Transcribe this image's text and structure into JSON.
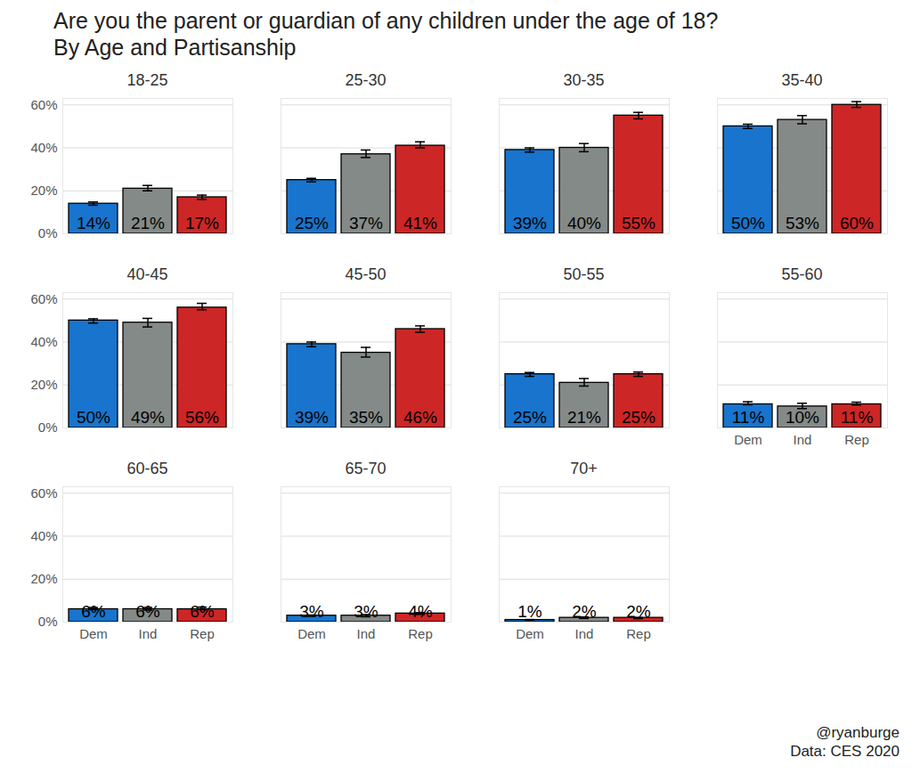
{
  "title": "Are you the parent or guardian of any children under the age of 18?",
  "subtitle": "By Age and Partisanship",
  "caption": "@ryanburge",
  "source": "Data: CES 2020",
  "chart_data": [
    {
      "type": "bar",
      "title": "18-25",
      "categories": [
        "Dem",
        "Ind",
        "Rep"
      ],
      "values": [
        14,
        21,
        17
      ],
      "value_labels": [
        "14%",
        "21%",
        "17%"
      ],
      "error_bars": [
        [
          13.3,
          14.8
        ],
        [
          20,
          22.5
        ],
        [
          16,
          18
        ]
      ],
      "colors": [
        "#1874cd",
        "#848a88",
        "#cd2626"
      ],
      "ylim": [
        0,
        63
      ],
      "yticks": [
        {
          "value": 0,
          "label": "0%"
        },
        {
          "value": 20,
          "label": "20%"
        },
        {
          "value": 40,
          "label": "40%"
        },
        {
          "value": 60,
          "label": "60%"
        }
      ],
      "grid": true,
      "data_labels": true,
      "tick_labels": "y"
    },
    {
      "type": "bar",
      "title": "25-30",
      "categories": [
        "Dem",
        "Ind",
        "Rep"
      ],
      "values": [
        25,
        37,
        41
      ],
      "value_labels": [
        "25%",
        "37%",
        "41%"
      ],
      "error_bars": [
        [
          24.2,
          25.8
        ],
        [
          35.5,
          39
        ],
        [
          40,
          42.8
        ]
      ],
      "colors": [
        "#1874cd",
        "#848a88",
        "#cd2626"
      ],
      "ylim": [
        0,
        63
      ],
      "yticks": [
        {
          "value": 0,
          "label": "0%"
        },
        {
          "value": 20,
          "label": "20%"
        },
        {
          "value": 40,
          "label": "40%"
        },
        {
          "value": 60,
          "label": "60%"
        }
      ],
      "grid": true,
      "data_labels": true,
      "tick_labels": false
    },
    {
      "type": "bar",
      "title": "30-35",
      "categories": [
        "Dem",
        "Ind",
        "Rep"
      ],
      "values": [
        39,
        40,
        55
      ],
      "value_labels": [
        "39%",
        "40%",
        "55%"
      ],
      "error_bars": [
        [
          38,
          40
        ],
        [
          38.2,
          42
        ],
        [
          53.5,
          56.5
        ]
      ],
      "colors": [
        "#1874cd",
        "#848a88",
        "#cd2626"
      ],
      "ylim": [
        0,
        63
      ],
      "yticks": [
        {
          "value": 0,
          "label": "0%"
        },
        {
          "value": 20,
          "label": "20%"
        },
        {
          "value": 40,
          "label": "40%"
        },
        {
          "value": 60,
          "label": "60%"
        }
      ],
      "grid": true,
      "data_labels": true,
      "tick_labels": false
    },
    {
      "type": "bar",
      "title": "35-40",
      "categories": [
        "Dem",
        "Ind",
        "Rep"
      ],
      "values": [
        50,
        53,
        60
      ],
      "value_labels": [
        "50%",
        "53%",
        "60%"
      ],
      "error_bars": [
        [
          49,
          51
        ],
        [
          51.2,
          55
        ],
        [
          58.8,
          61.5
        ]
      ],
      "colors": [
        "#1874cd",
        "#848a88",
        "#cd2626"
      ],
      "ylim": [
        0,
        63
      ],
      "yticks": [
        {
          "value": 0,
          "label": "0%"
        },
        {
          "value": 20,
          "label": "20%"
        },
        {
          "value": 40,
          "label": "40%"
        },
        {
          "value": 60,
          "label": "60%"
        }
      ],
      "grid": true,
      "data_labels": true,
      "tick_labels": false
    },
    {
      "type": "bar",
      "title": "40-45",
      "categories": [
        "Dem",
        "Ind",
        "Rep"
      ],
      "values": [
        50,
        49,
        56
      ],
      "value_labels": [
        "50%",
        "49%",
        "56%"
      ],
      "error_bars": [
        [
          48.8,
          50.8
        ],
        [
          47,
          51
        ],
        [
          55,
          58
        ]
      ],
      "colors": [
        "#1874cd",
        "#848a88",
        "#cd2626"
      ],
      "ylim": [
        0,
        63
      ],
      "yticks": [
        {
          "value": 0,
          "label": "0%"
        },
        {
          "value": 20,
          "label": "20%"
        },
        {
          "value": 40,
          "label": "40%"
        },
        {
          "value": 60,
          "label": "60%"
        }
      ],
      "grid": true,
      "data_labels": true,
      "tick_labels": "y"
    },
    {
      "type": "bar",
      "title": "45-50",
      "categories": [
        "Dem",
        "Ind",
        "Rep"
      ],
      "values": [
        39,
        35,
        46
      ],
      "value_labels": [
        "39%",
        "35%",
        "46%"
      ],
      "error_bars": [
        [
          37.8,
          40
        ],
        [
          33,
          37.5
        ],
        [
          44.5,
          47.5
        ]
      ],
      "colors": [
        "#1874cd",
        "#848a88",
        "#cd2626"
      ],
      "ylim": [
        0,
        63
      ],
      "yticks": [
        {
          "value": 0,
          "label": "0%"
        },
        {
          "value": 20,
          "label": "20%"
        },
        {
          "value": 40,
          "label": "40%"
        },
        {
          "value": 60,
          "label": "60%"
        }
      ],
      "grid": true,
      "data_labels": true,
      "tick_labels": false
    },
    {
      "type": "bar",
      "title": "50-55",
      "categories": [
        "Dem",
        "Ind",
        "Rep"
      ],
      "values": [
        25,
        21,
        25
      ],
      "value_labels": [
        "25%",
        "21%",
        "25%"
      ],
      "error_bars": [
        [
          24,
          25.8
        ],
        [
          19.5,
          23
        ],
        [
          24,
          26
        ]
      ],
      "colors": [
        "#1874cd",
        "#848a88",
        "#cd2626"
      ],
      "ylim": [
        0,
        63
      ],
      "yticks": [
        {
          "value": 0,
          "label": "0%"
        },
        {
          "value": 20,
          "label": "20%"
        },
        {
          "value": 40,
          "label": "40%"
        },
        {
          "value": 60,
          "label": "60%"
        }
      ],
      "grid": true,
      "data_labels": true,
      "tick_labels": false
    },
    {
      "type": "bar",
      "title": "55-60",
      "categories": [
        "Dem",
        "Ind",
        "Rep"
      ],
      "values": [
        11,
        10,
        11
      ],
      "value_labels": [
        "11%",
        "10%",
        "11%"
      ],
      "error_bars": [
        [
          10.8,
          12.2
        ],
        [
          9,
          11.5
        ],
        [
          10.7,
          12
        ]
      ],
      "colors": [
        "#1874cd",
        "#848a88",
        "#cd2626"
      ],
      "ylim": [
        0,
        63
      ],
      "yticks": [
        {
          "value": 0,
          "label": "0%"
        },
        {
          "value": 20,
          "label": "20%"
        },
        {
          "value": 40,
          "label": "40%"
        },
        {
          "value": 60,
          "label": "60%"
        }
      ],
      "grid": true,
      "data_labels": true,
      "tick_labels": "x"
    },
    {
      "type": "bar",
      "title": "60-65",
      "categories": [
        "Dem",
        "Ind",
        "Rep"
      ],
      "values": [
        6,
        6,
        6
      ],
      "value_labels": [
        "6%",
        "6%",
        "6%"
      ],
      "error_bars": [
        [
          5.8,
          6.8
        ],
        [
          5.6,
          6.8
        ],
        [
          5.8,
          7
        ]
      ],
      "colors": [
        "#1874cd",
        "#848a88",
        "#cd2626"
      ],
      "ylim": [
        0,
        63
      ],
      "yticks": [
        {
          "value": 0,
          "label": "0%"
        },
        {
          "value": 20,
          "label": "20%"
        },
        {
          "value": 40,
          "label": "40%"
        },
        {
          "value": 60,
          "label": "60%"
        }
      ],
      "grid": true,
      "data_labels": true,
      "tick_labels": true
    },
    {
      "type": "bar",
      "title": "65-70",
      "categories": [
        "Dem",
        "Ind",
        "Rep"
      ],
      "values": [
        3,
        3,
        4
      ],
      "value_labels": [
        "3%",
        "3%",
        "4%"
      ],
      "error_bars": [
        [
          2.7,
          3.3
        ],
        [
          2.5,
          3.5
        ],
        [
          3.6,
          4.4
        ]
      ],
      "colors": [
        "#1874cd",
        "#848a88",
        "#cd2626"
      ],
      "ylim": [
        0,
        63
      ],
      "yticks": [
        {
          "value": 0,
          "label": "0%"
        },
        {
          "value": 20,
          "label": "20%"
        },
        {
          "value": 40,
          "label": "40%"
        },
        {
          "value": 60,
          "label": "60%"
        }
      ],
      "grid": true,
      "data_labels": true,
      "tick_labels": "x"
    },
    {
      "type": "bar",
      "title": "70+",
      "categories": [
        "Dem",
        "Ind",
        "Rep"
      ],
      "values": [
        1,
        2,
        2
      ],
      "value_labels": [
        "1%",
        "2%",
        "2%"
      ],
      "error_bars": [
        [
          0.9,
          1.2
        ],
        [
          1.7,
          2.4
        ],
        [
          1.6,
          2.1
        ]
      ],
      "colors": [
        "#1874cd",
        "#848a88",
        "#cd2626"
      ],
      "ylim": [
        0,
        63
      ],
      "yticks": [
        {
          "value": 0,
          "label": "0%"
        },
        {
          "value": 20,
          "label": "20%"
        },
        {
          "value": 40,
          "label": "40%"
        },
        {
          "value": 60,
          "label": "60%"
        }
      ],
      "grid": true,
      "data_labels": true,
      "tick_labels": "x"
    }
  ]
}
